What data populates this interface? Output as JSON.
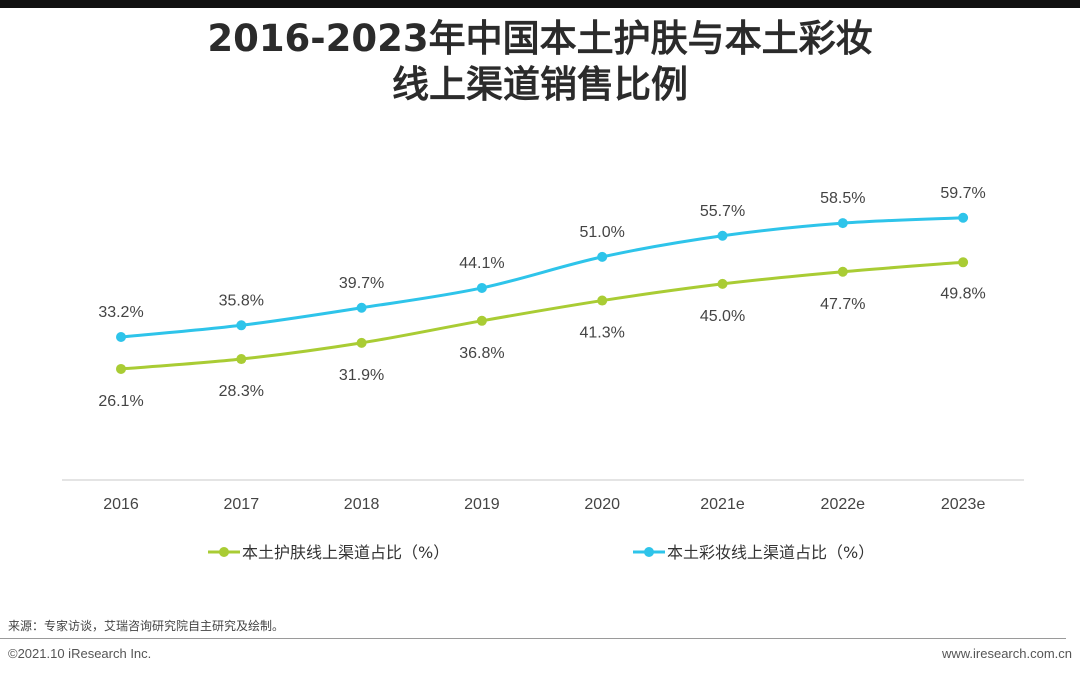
{
  "header": {
    "title_line1": "2016-2023年中国本土护肤与本土彩妆",
    "title_line2": "线上渠道销售比例"
  },
  "chart_data": {
    "type": "line",
    "categories": [
      "2016",
      "2017",
      "2018",
      "2019",
      "2020",
      "2021e",
      "2022e",
      "2023e"
    ],
    "series": [
      {
        "name": "本土护肤线上渠道占比（%）",
        "color": "#a9cc34",
        "values": [
          26.1,
          28.3,
          31.9,
          36.8,
          41.3,
          45.0,
          47.7,
          49.8
        ],
        "labels": [
          "26.1%",
          "28.3%",
          "31.9%",
          "36.8%",
          "41.3%",
          "45.0%",
          "47.7%",
          "49.8%"
        ]
      },
      {
        "name": "本土彩妆线上渠道占比（%）",
        "color": "#2ec4ea",
        "values": [
          33.2,
          35.8,
          39.7,
          44.1,
          51.0,
          55.7,
          58.5,
          59.7
        ],
        "labels": [
          "33.2%",
          "35.8%",
          "39.7%",
          "44.1%",
          "51.0%",
          "55.7%",
          "58.5%",
          "59.7%"
        ]
      }
    ],
    "legend_position": "bottom",
    "grid": false
  },
  "footer": {
    "source": "来源：专家访谈，艾瑞咨询研究院自主研究及绘制。",
    "copyright": "©2021.10 iResearch Inc.",
    "website": "www.iresearch.com.cn"
  }
}
